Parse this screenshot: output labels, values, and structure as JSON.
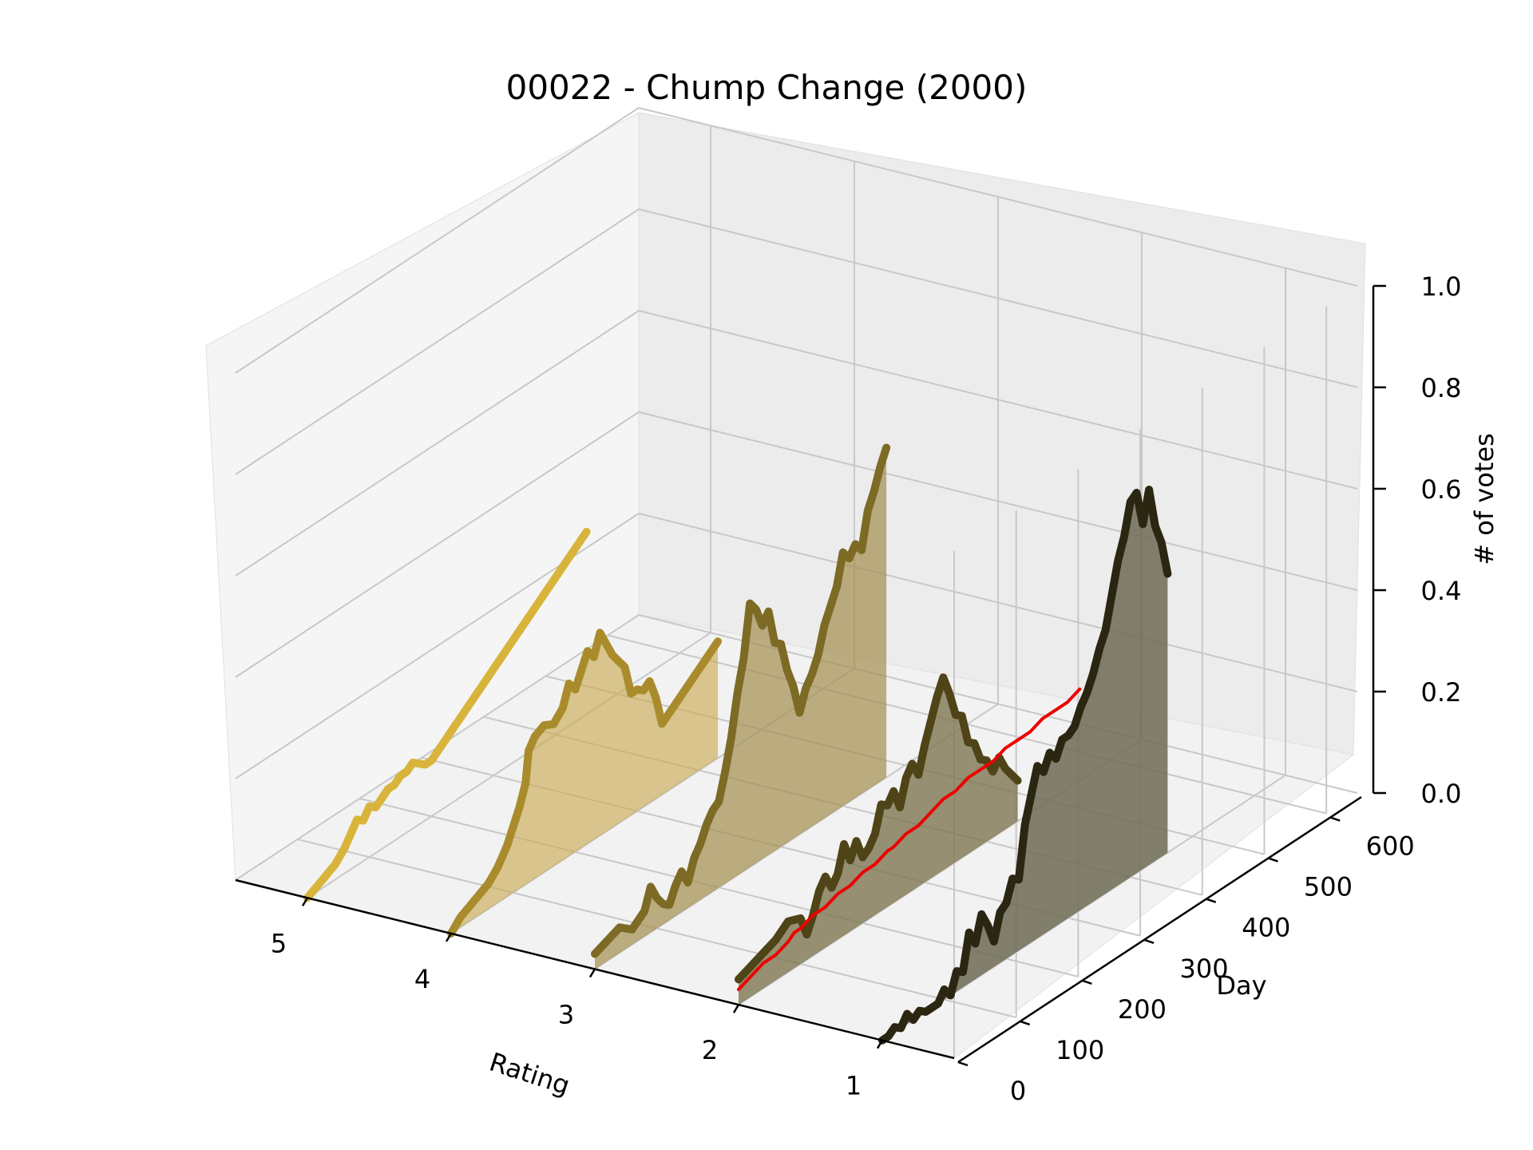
{
  "chart_data": {
    "type": "line",
    "title": "00022 - Chump Change (2000)",
    "xlabel": "Rating",
    "ylabel": "Day",
    "zlabel": "# of votes",
    "rating_ticks": [
      "5",
      "4",
      "3",
      "2",
      "1"
    ],
    "day_ticks": [
      "0",
      "100",
      "200",
      "300",
      "400",
      "500",
      "600"
    ],
    "votes_ticks": [
      "0.0",
      "0.2",
      "0.4",
      "0.6",
      "0.8",
      "1.0"
    ],
    "xlim": [
      0.5,
      5.5
    ],
    "ylim": [
      0,
      650
    ],
    "zlim": [
      0,
      1
    ],
    "grid": true,
    "series": [
      {
        "rating": 5,
        "color": "#D9B43A",
        "fill": "#D9B43A",
        "fill_opacity": 0.0,
        "points": [
          [
            0,
            0.0
          ],
          [
            15,
            0.01
          ],
          [
            30,
            0.02
          ],
          [
            45,
            0.03
          ],
          [
            60,
            0.05
          ],
          [
            70,
            0.07
          ],
          [
            80,
            0.09
          ],
          [
            90,
            0.08
          ],
          [
            100,
            0.1
          ],
          [
            110,
            0.09
          ],
          [
            120,
            0.1
          ],
          [
            130,
            0.11
          ],
          [
            140,
            0.11
          ],
          [
            150,
            0.12
          ],
          [
            160,
            0.12
          ],
          [
            170,
            0.13
          ],
          [
            180,
            0.12
          ],
          [
            190,
            0.11
          ],
          [
            200,
            0.11
          ],
          [
            210,
            0.12
          ],
          [
            220,
            0.13
          ],
          [
            230,
            0.14
          ],
          [
            240,
            0.15
          ],
          [
            250,
            0.16
          ],
          [
            260,
            0.17
          ],
          [
            270,
            0.18
          ],
          [
            280,
            0.19
          ],
          [
            290,
            0.2
          ],
          [
            300,
            0.21
          ],
          [
            310,
            0.22
          ],
          [
            320,
            0.23
          ],
          [
            330,
            0.24
          ],
          [
            340,
            0.25
          ],
          [
            350,
            0.26
          ],
          [
            360,
            0.27
          ],
          [
            370,
            0.28
          ],
          [
            380,
            0.29
          ],
          [
            390,
            0.3
          ],
          [
            400,
            0.31
          ],
          [
            410,
            0.32
          ],
          [
            420,
            0.33
          ],
          [
            430,
            0.34
          ],
          [
            440,
            0.35
          ],
          [
            450,
            0.36
          ]
        ]
      },
      {
        "rating": 4,
        "color": "#A98B2C",
        "fill": "#C9AB55",
        "fill_opacity": 0.65,
        "points": [
          [
            0,
            0.0
          ],
          [
            15,
            0.02
          ],
          [
            30,
            0.03
          ],
          [
            45,
            0.04
          ],
          [
            60,
            0.05
          ],
          [
            75,
            0.07
          ],
          [
            90,
            0.1
          ],
          [
            100,
            0.13
          ],
          [
            110,
            0.16
          ],
          [
            120,
            0.2
          ],
          [
            125,
            0.26
          ],
          [
            135,
            0.28
          ],
          [
            150,
            0.29
          ],
          [
            165,
            0.28
          ],
          [
            180,
            0.3
          ],
          [
            190,
            0.34
          ],
          [
            200,
            0.32
          ],
          [
            210,
            0.35
          ],
          [
            220,
            0.38
          ],
          [
            230,
            0.36
          ],
          [
            240,
            0.4
          ],
          [
            250,
            0.37
          ],
          [
            260,
            0.34
          ],
          [
            270,
            0.32
          ],
          [
            280,
            0.3
          ],
          [
            290,
            0.24
          ],
          [
            300,
            0.24
          ],
          [
            310,
            0.23
          ],
          [
            320,
            0.24
          ],
          [
            330,
            0.2
          ],
          [
            340,
            0.14
          ],
          [
            350,
            0.15
          ],
          [
            360,
            0.16
          ],
          [
            370,
            0.17
          ],
          [
            380,
            0.18
          ],
          [
            390,
            0.19
          ],
          [
            400,
            0.2
          ],
          [
            410,
            0.21
          ],
          [
            420,
            0.22
          ],
          [
            430,
            0.23
          ]
        ]
      },
      {
        "rating": 3,
        "color": "#7D6A25",
        "fill": "#A38F4E",
        "fill_opacity": 0.7,
        "points": [
          [
            0,
            0.03
          ],
          [
            20,
            0.04
          ],
          [
            40,
            0.05
          ],
          [
            60,
            0.03
          ],
          [
            80,
            0.05
          ],
          [
            90,
            0.09
          ],
          [
            100,
            0.06
          ],
          [
            110,
            0.04
          ],
          [
            120,
            0.03
          ],
          [
            130,
            0.06
          ],
          [
            140,
            0.08
          ],
          [
            150,
            0.05
          ],
          [
            160,
            0.09
          ],
          [
            170,
            0.11
          ],
          [
            180,
            0.14
          ],
          [
            190,
            0.16
          ],
          [
            200,
            0.17
          ],
          [
            210,
            0.22
          ],
          [
            220,
            0.28
          ],
          [
            230,
            0.36
          ],
          [
            240,
            0.42
          ],
          [
            250,
            0.52
          ],
          [
            260,
            0.5
          ],
          [
            270,
            0.46
          ],
          [
            280,
            0.48
          ],
          [
            290,
            0.41
          ],
          [
            300,
            0.4
          ],
          [
            310,
            0.34
          ],
          [
            320,
            0.3
          ],
          [
            330,
            0.24
          ],
          [
            340,
            0.28
          ],
          [
            350,
            0.3
          ],
          [
            360,
            0.33
          ],
          [
            370,
            0.38
          ],
          [
            380,
            0.41
          ],
          [
            390,
            0.44
          ],
          [
            400,
            0.5
          ],
          [
            410,
            0.48
          ],
          [
            420,
            0.5
          ],
          [
            430,
            0.48
          ],
          [
            440,
            0.55
          ],
          [
            450,
            0.58
          ],
          [
            460,
            0.62
          ],
          [
            470,
            0.65
          ]
        ]
      },
      {
        "rating": 2,
        "color": "#4E4418",
        "fill": "#7E7550",
        "fill_opacity": 0.8,
        "points": [
          [
            0,
            0.05
          ],
          [
            20,
            0.06
          ],
          [
            40,
            0.07
          ],
          [
            60,
            0.08
          ],
          [
            80,
            0.1
          ],
          [
            100,
            0.09
          ],
          [
            110,
            0.05
          ],
          [
            120,
            0.08
          ],
          [
            130,
            0.12
          ],
          [
            140,
            0.14
          ],
          [
            150,
            0.11
          ],
          [
            160,
            0.13
          ],
          [
            170,
            0.18
          ],
          [
            180,
            0.14
          ],
          [
            190,
            0.17
          ],
          [
            200,
            0.13
          ],
          [
            210,
            0.14
          ],
          [
            220,
            0.16
          ],
          [
            230,
            0.21
          ],
          [
            240,
            0.2
          ],
          [
            250,
            0.22
          ],
          [
            260,
            0.18
          ],
          [
            270,
            0.23
          ],
          [
            280,
            0.25
          ],
          [
            290,
            0.22
          ],
          [
            300,
            0.27
          ],
          [
            310,
            0.31
          ],
          [
            320,
            0.35
          ],
          [
            330,
            0.38
          ],
          [
            340,
            0.34
          ],
          [
            350,
            0.29
          ],
          [
            360,
            0.28
          ],
          [
            370,
            0.22
          ],
          [
            380,
            0.21
          ],
          [
            390,
            0.17
          ],
          [
            400,
            0.16
          ],
          [
            410,
            0.13
          ],
          [
            420,
            0.15
          ],
          [
            430,
            0.12
          ],
          [
            440,
            0.1
          ],
          [
            450,
            0.08
          ]
        ]
      },
      {
        "rating": 1,
        "color": "#2A2611",
        "fill": "#6E6A55",
        "fill_opacity": 0.85,
        "points": [
          [
            0,
            0.0
          ],
          [
            10,
            0.0
          ],
          [
            20,
            0.01
          ],
          [
            30,
            0.0
          ],
          [
            40,
            0.02
          ],
          [
            50,
            0.0
          ],
          [
            60,
            0.01
          ],
          [
            70,
            0.0
          ],
          [
            80,
            -0.05
          ],
          [
            90,
            -0.03
          ],
          [
            100,
            0.02
          ],
          [
            110,
            0.0
          ],
          [
            120,
            0.04
          ],
          [
            130,
            0.03
          ],
          [
            140,
            0.1
          ],
          [
            150,
            0.07
          ],
          [
            160,
            0.12
          ],
          [
            170,
            0.09
          ],
          [
            180,
            0.05
          ],
          [
            190,
            0.1
          ],
          [
            200,
            0.11
          ],
          [
            210,
            0.15
          ],
          [
            220,
            0.14
          ],
          [
            230,
            0.24
          ],
          [
            240,
            0.29
          ],
          [
            250,
            0.34
          ],
          [
            260,
            0.32
          ],
          [
            270,
            0.35
          ],
          [
            280,
            0.33
          ],
          [
            290,
            0.36
          ],
          [
            300,
            0.36
          ],
          [
            310,
            0.37
          ],
          [
            320,
            0.4
          ],
          [
            330,
            0.42
          ],
          [
            340,
            0.45
          ],
          [
            350,
            0.49
          ],
          [
            360,
            0.52
          ],
          [
            370,
            0.58
          ],
          [
            380,
            0.64
          ],
          [
            390,
            0.68
          ],
          [
            400,
            0.74
          ],
          [
            410,
            0.75
          ],
          [
            420,
            0.68
          ],
          [
            430,
            0.74
          ],
          [
            440,
            0.66
          ],
          [
            450,
            0.62
          ],
          [
            460,
            0.55
          ]
        ]
      },
      {
        "rating": 2,
        "color": "#EE0000",
        "fill": "#EE0000",
        "fill_opacity": 0.0,
        "line_width": 4,
        "points": [
          [
            0,
            0.03
          ],
          [
            20,
            0.04
          ],
          [
            40,
            0.05
          ],
          [
            60,
            0.05
          ],
          [
            80,
            0.06
          ],
          [
            90,
            0.07
          ],
          [
            100,
            0.07
          ],
          [
            120,
            0.08
          ],
          [
            140,
            0.08
          ],
          [
            160,
            0.09
          ],
          [
            180,
            0.09
          ],
          [
            200,
            0.1
          ],
          [
            220,
            0.1
          ],
          [
            240,
            0.11
          ],
          [
            250,
            0.11
          ],
          [
            270,
            0.12
          ],
          [
            290,
            0.12
          ],
          [
            310,
            0.13
          ],
          [
            330,
            0.14
          ],
          [
            350,
            0.14
          ],
          [
            370,
            0.15
          ],
          [
            390,
            0.15
          ],
          [
            410,
            0.15
          ],
          [
            430,
            0.16
          ],
          [
            450,
            0.16
          ],
          [
            470,
            0.16
          ],
          [
            490,
            0.17
          ],
          [
            510,
            0.17
          ],
          [
            530,
            0.17
          ],
          [
            550,
            0.18
          ]
        ]
      }
    ]
  }
}
